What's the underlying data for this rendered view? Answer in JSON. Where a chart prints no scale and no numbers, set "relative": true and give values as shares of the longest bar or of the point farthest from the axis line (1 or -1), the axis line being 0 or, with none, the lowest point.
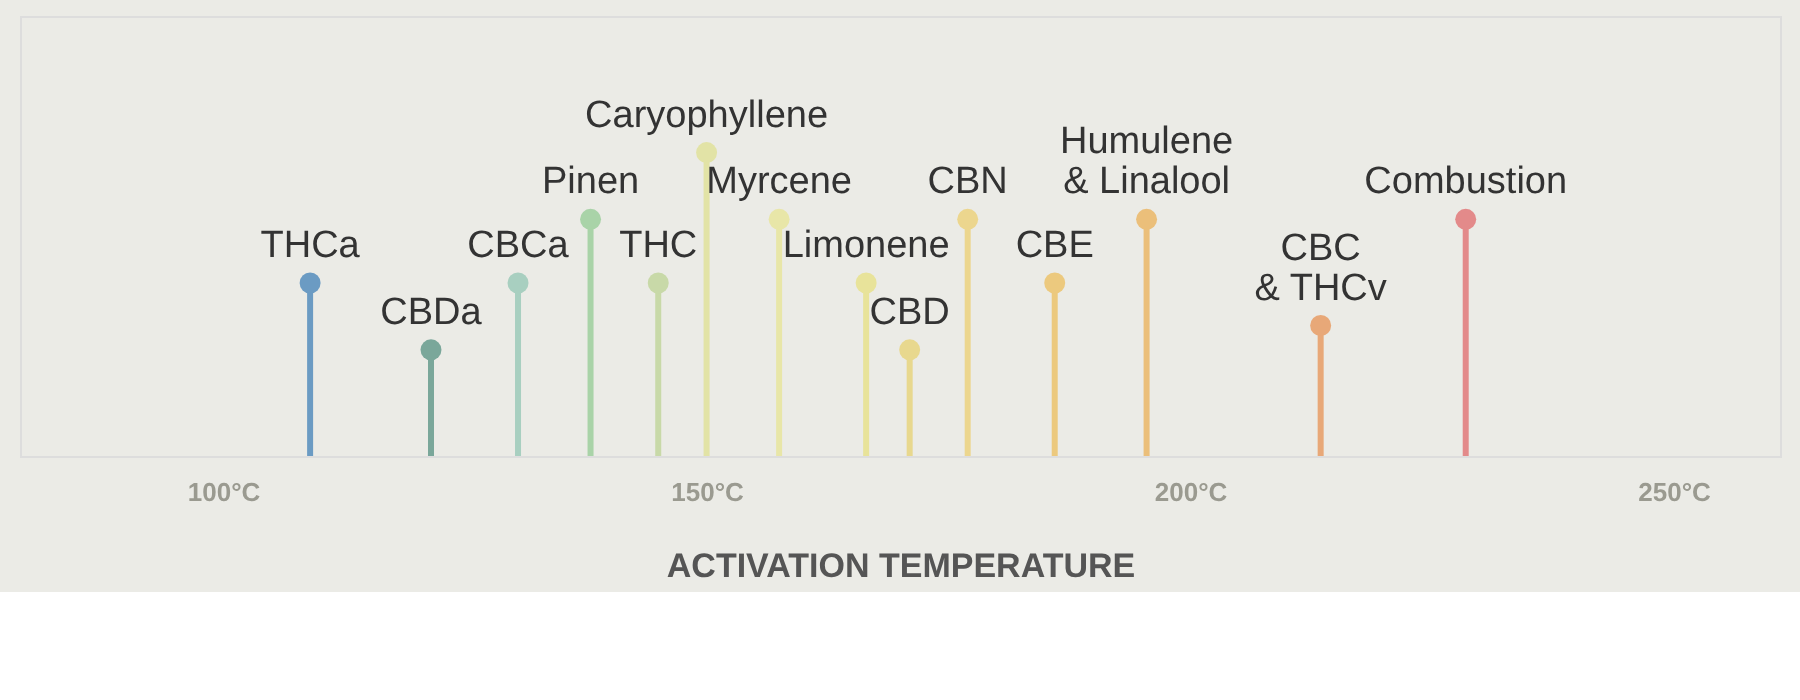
{
  "chart_data": {
    "type": "lollipop",
    "relative": true,
    "xlabel": "ACTIVATION TEMPERATURE",
    "x": [
      109,
      121.5,
      130.5,
      138,
      145,
      150,
      157.5,
      166.5,
      171,
      177,
      186,
      195.5,
      213.5,
      228.5
    ],
    "values": [
      0.57,
      0.35,
      0.57,
      0.78,
      0.57,
      1,
      0.78,
      0.57,
      0.35,
      0.78,
      0.57,
      0.78,
      0.43,
      0.78
    ],
    "colors": [
      "#6b9bc3",
      "#7aa79a",
      "#a8cfc0",
      "#a9d3a8",
      "#c8d9a8",
      "#e2e3a6",
      "#e8e6a8",
      "#e8e39a",
      "#e8d88e",
      "#ecd68e",
      "#ecc97e",
      "#ebbf7a",
      "#e8a878",
      "#e38a8a"
    ],
    "annotations": [
      {
        "text": "THCa",
        "x": 109,
        "y": 0.57
      },
      {
        "text": "CBDa",
        "x": 121.5,
        "y": 0.35
      },
      {
        "text": "CBCa",
        "x": 130.5,
        "y": 0.57
      },
      {
        "text": "Pinen",
        "x": 138,
        "y": 0.78
      },
      {
        "text": "THC",
        "x": 145,
        "y": 0.57
      },
      {
        "text": "Caryophyllene",
        "x": 150,
        "y": 1
      },
      {
        "text": "Myrcene",
        "x": 157.5,
        "y": 0.78
      },
      {
        "text": "Limonene",
        "x": 166.5,
        "y": 0.57
      },
      {
        "text": "CBD",
        "x": 171,
        "y": 0.35
      },
      {
        "text": "CBN",
        "x": 177,
        "y": 0.78
      },
      {
        "text": "CBE",
        "x": 186,
        "y": 0.57
      },
      {
        "text": "Humulene\n& Linalool",
        "x": 195.5,
        "y": 0.78
      },
      {
        "text": "CBC\n& THCv",
        "x": 213.5,
        "y": 0.43
      },
      {
        "text": "Combustion",
        "x": 228.5,
        "y": 0.78
      }
    ],
    "xlim": [
      79,
      261
    ],
    "xticks": [
      {
        "value": 100,
        "label": "100°C"
      },
      {
        "value": 150,
        "label": "150°C"
      },
      {
        "value": 200,
        "label": "200°C"
      },
      {
        "value": 250,
        "label": "250°C"
      }
    ],
    "grid": false,
    "marker": "circle"
  }
}
